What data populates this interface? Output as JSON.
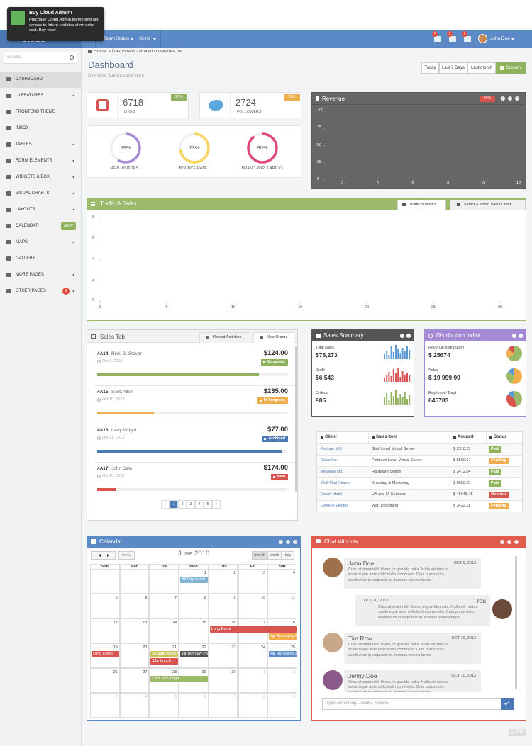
{
  "notification": {
    "title": "Buy Cloud Admin!",
    "text": "Purchase Cloud Admin theme and get access to future updates at no extra cost. Buy now!"
  },
  "navbar": {
    "brand": "Cloud",
    "menus": [
      "Team Status",
      "Skins"
    ],
    "badges": [
      "7",
      "5",
      "5"
    ],
    "user": "John Doe"
  },
  "sidebar": {
    "search": "Search",
    "items": [
      {
        "label": "DASHBOARD",
        "active": true
      },
      {
        "label": "UI FEATURES",
        "arrow": true
      },
      {
        "label": "FRONTEND THEME"
      },
      {
        "label": "INBOX"
      },
      {
        "label": "TABLES",
        "arrow": true
      },
      {
        "label": "FORM ELEMENTS",
        "arrow": true
      },
      {
        "label": "WIDGETS & BOX",
        "arrow": true
      },
      {
        "label": "VISUAL CHARTS",
        "arrow": true
      },
      {
        "label": "LAYOUTS",
        "arrow": true
      },
      {
        "label": "CALENDAR",
        "badge": "NEW",
        "badge_color": "#8fb35c"
      },
      {
        "label": "MAPS",
        "arrow": true
      },
      {
        "label": "GALLERY"
      },
      {
        "label": "MORE PAGES",
        "arrow": true
      },
      {
        "label": "OTHER PAGES",
        "badge": "9",
        "badge_color": "#e04b3c",
        "arrow": true
      }
    ]
  },
  "header": {
    "breadcrumb": [
      "Home",
      "Dashboard - shared on weidea.net"
    ],
    "title": "Dashboard",
    "subtitle": "Overview, Statistics and more",
    "ranges": [
      "Today",
      "Last 7 Days",
      "Last month",
      "Custom"
    ]
  },
  "stats": [
    {
      "value": 6718,
      "label": "LIKES",
      "change": "26%",
      "color": "#8fb35c"
    },
    {
      "value": 2724,
      "label": "FOLLOWERS",
      "change": "5%",
      "color": "#f0ad4e"
    }
  ],
  "donuts": [
    {
      "value": 59,
      "label": "59%",
      "name": "NEW VISITORS ›",
      "color": "#a48ad4"
    },
    {
      "value": 73,
      "label": "73%",
      "name": "BOUNCE RATE ›",
      "color": "#f6d55c"
    },
    {
      "value": 90,
      "label": "90%",
      "name": "BRAND POPULARITY ›",
      "color": "#e0487a"
    }
  ],
  "revenue": {
    "title": "Revenue",
    "badge": "20%",
    "ylim": [
      0,
      100
    ],
    "yticks": [
      0,
      25,
      50,
      75,
      100
    ],
    "xlim": [
      1,
      12
    ],
    "xticks": [
      2,
      4,
      6,
      8,
      10,
      12
    ]
  },
  "traffic": {
    "title": "Traffic & Sales",
    "tabs": [
      "Traffic Statistics",
      "Select & Zoom Sales Chart"
    ],
    "ylim": [
      0,
      8
    ],
    "yticks": [
      0,
      2,
      4,
      6,
      8
    ],
    "xlim": [
      0,
      30
    ],
    "xticks": [
      0,
      5,
      10,
      15,
      20,
      25,
      30
    ]
  },
  "sales_tab": {
    "title": "Sales Tab",
    "tabs": [
      "Recent Activities",
      "New Orders"
    ],
    "orders": [
      {
        "id": "#A14",
        "name": "Rikki S. Stover",
        "date": "Oct 9, 2013",
        "amount": "$124.00",
        "status": "Complete",
        "color": "#8fb35c",
        "progress": 85
      },
      {
        "id": "#A15",
        "name": "Scott Allen",
        "date": "Oct 10, 2013",
        "amount": "$235.00",
        "status": "In Progress",
        "color": "#f0ad4e",
        "progress": 30
      },
      {
        "id": "#A16",
        "name": "Larry Wright",
        "date": "Oct 11, 2013",
        "amount": "$77.00",
        "status": "Archived",
        "color": "#4a79b5",
        "progress": 97
      },
      {
        "id": "#A17",
        "name": "John Dale",
        "date": "Oct 10, 2013",
        "amount": "$174.00",
        "status": "New",
        "color": "#d9534f",
        "progress": 10
      }
    ],
    "pages": [
      "‹",
      "1",
      "2",
      "3",
      "4",
      "5",
      "›"
    ],
    "current_page": "1"
  },
  "sales_summary": {
    "title": "Sales Summary",
    "items": [
      {
        "label": "Total sales",
        "value": "$78,273",
        "color": "#5b9bd5",
        "bars": [
          8,
          12,
          6,
          18,
          10,
          20,
          14,
          9,
          16,
          11,
          19,
          13
        ]
      },
      {
        "label": "Profit",
        "value": "$6,543",
        "color": "#d9534f",
        "bars": [
          6,
          10,
          14,
          8,
          18,
          12,
          20,
          7,
          15,
          10,
          13,
          9
        ]
      },
      {
        "label": "Orders",
        "value": "985",
        "color": "#8fb35c",
        "bars": [
          10,
          16,
          7,
          18,
          12,
          20,
          9,
          15,
          11,
          17,
          8,
          14
        ]
      }
    ]
  },
  "distribution": {
    "title": "Distribution Index",
    "items": [
      {
        "label": "Revenue distribution",
        "value": "$ 25674",
        "slices": [
          65,
          20,
          15
        ],
        "colors": [
          "#9bbb6a",
          "#f0ad4e",
          "#d9534f"
        ]
      },
      {
        "label": "Sales",
        "value": "$ 19 999,99",
        "slices": [
          55,
          30,
          15
        ],
        "colors": [
          "#f0ad4e",
          "#9bbb6a",
          "#5b9bd5"
        ]
      },
      {
        "label": "Employee/ Dept",
        "value": "645783",
        "slices": [
          45,
          40,
          15
        ],
        "colors": [
          "#9bbb6a",
          "#d9534f",
          "#5b9bd5"
        ]
      }
    ]
  },
  "table": {
    "columns": [
      "Client",
      "Sales Item",
      "Amount",
      "Status"
    ],
    "rows": [
      [
        "Fortune 500",
        "Gold Level Virtual Server",
        "$ 2310.23",
        "Paid"
      ],
      [
        "Cisco Inc.",
        "Platinum Level Virtual Server",
        "$ 5502.67",
        "Pending"
      ],
      [
        "VMWare Ltd.",
        "Hardware Switch",
        "$ 3472.54",
        "Paid"
      ],
      [
        "Wall-Mart Stores",
        "Branding & Marketing",
        "$ 6653.25",
        "Paid"
      ],
      [
        "Exxon Mobil",
        "UX and UI Services",
        "$ 45645.45",
        "Overdue"
      ],
      [
        "General Electric",
        "Web Designing",
        "$ 3432.11",
        "Pending"
      ]
    ],
    "status_colors": [
      "#8fb35c",
      "#f0ad4e",
      "#8fb35c",
      "#8fb35c",
      "#d9534f",
      "#f0ad4e"
    ]
  },
  "calendar": {
    "title": "Calendar",
    "today": "today",
    "month": "June 2016",
    "views": [
      "month",
      "week",
      "day"
    ],
    "weekdays": [
      "Sun",
      "Mon",
      "Tue",
      "Wed",
      "Thu",
      "Fri",
      "Sat"
    ],
    "weeks": [
      [
        null,
        null,
        null,
        1,
        2,
        3,
        4
      ],
      [
        5,
        6,
        7,
        8,
        9,
        10,
        11
      ],
      [
        12,
        13,
        14,
        15,
        16,
        17,
        18
      ],
      [
        19,
        20,
        21,
        22,
        23,
        24,
        25
      ],
      [
        26,
        27,
        28,
        29,
        30,
        1,
        2
      ],
      [
        3,
        4,
        5,
        6,
        7,
        8,
        9
      ]
    ],
    "events": [
      {
        "title": "All Day Event",
        "start": 1,
        "end": 1,
        "color": "#7fb3d5"
      },
      {
        "title": "Long Event",
        "start": 16,
        "end": 19,
        "color": "#d9534f"
      },
      {
        "title": "Repeating Event",
        "time": "4p",
        "start": 18,
        "end": 18,
        "color": "#f0ad4e"
      },
      {
        "title": "Meeting",
        "time": "10:30a",
        "start": 21,
        "end": 21,
        "color": "#c9c35a"
      },
      {
        "title": "Lunch",
        "time": "12p",
        "start": 21,
        "end": 21,
        "color": "#d9534f"
      },
      {
        "title": "Birthday Party",
        "time": "7p",
        "start": 22,
        "end": 22,
        "color": "#555555"
      },
      {
        "title": "Repeating Event",
        "time": "4p",
        "start": 25,
        "end": 25,
        "color": "#5b8ac7"
      },
      {
        "title": "Click for Google",
        "start": 28,
        "end": 29,
        "color": "#9bbb6a"
      }
    ]
  },
  "chat": {
    "title": "Chat Window",
    "placeholder": "Type something....really.. it works",
    "messages": [
      {
        "name": "John Doe",
        "date": "OCT 9, 2013",
        "side": "left",
        "avatar": "#a0704a",
        "text": "Cras sit amet nibh libero, in gravida nulla. Nulla vel metus scelerisque ante sollicitudin commodo. Cras purus odio, vestibulum in vulputate at, tempus viverra turpis."
      },
      {
        "name": "You",
        "date": "OCT 10, 2013",
        "side": "right",
        "avatar": "#6b4a3a",
        "text": "Cras sit amet nibh libero, in gravida nulla. Nulla vel metus scelerisque ante sollicitudin commodo. Cras purus odio, vestibulum in vulputate at, tempus viverra turpis."
      },
      {
        "name": "Tim Row",
        "date": "OCT 10, 2013",
        "side": "left",
        "avatar": "#c9a88a",
        "text": "Cras sit amet nibh libero, in gravida nulla. Nulla vel metus scelerisque ante sollicitudin commodo. Cras purus odio, vestibulum in vulputate at, tempus viverra turpis."
      },
      {
        "name": "Jenny Doe",
        "date": "OCT 10, 2013",
        "side": "left",
        "avatar": "#8a5a8a",
        "text": "Cras sit amet nibh libero, in gravida nulla. Nulla vel metus scelerisque ante sollicitudin commodo. Cras purus odio, vestibulum in vulputate at, tempus viverra turpis."
      }
    ]
  },
  "top_button": "TOP"
}
